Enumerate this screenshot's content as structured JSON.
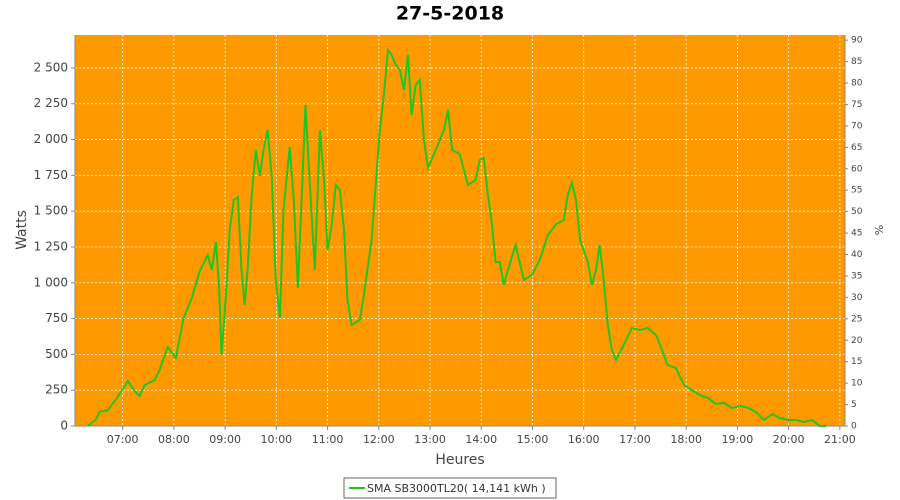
{
  "chart_data": {
    "type": "line",
    "title": "27-5-2018",
    "xlabel": "Heures",
    "ylabel": "Watts",
    "y2label": "%",
    "xlim": [
      6.07,
      21.1
    ],
    "ylim": [
      0,
      2730
    ],
    "y2lim": [
      0,
      91.2
    ],
    "xticks": [
      {
        "value": 7,
        "label": "07:00"
      },
      {
        "value": 8,
        "label": "08:00"
      },
      {
        "value": 9,
        "label": "09:00"
      },
      {
        "value": 10,
        "label": "10:00"
      },
      {
        "value": 11,
        "label": "11:00"
      },
      {
        "value": 12,
        "label": "12:00"
      },
      {
        "value": 13,
        "label": "13:00"
      },
      {
        "value": 14,
        "label": "14:00"
      },
      {
        "value": 15,
        "label": "15:00"
      },
      {
        "value": 16,
        "label": "16:00"
      },
      {
        "value": 17,
        "label": "17:00"
      },
      {
        "value": 18,
        "label": "18:00"
      },
      {
        "value": 19,
        "label": "19:00"
      },
      {
        "value": 20,
        "label": "20:00"
      },
      {
        "value": 21,
        "label": "21:00"
      }
    ],
    "yticks": [
      0,
      250,
      500,
      750,
      {
        "value": 1000,
        "label": "1 000"
      },
      {
        "value": 1250,
        "label": "1 250"
      },
      {
        "value": 1500,
        "label": "1 500"
      },
      {
        "value": 1750,
        "label": "1 750"
      },
      {
        "value": 2000,
        "label": "2 000"
      },
      {
        "value": 2250,
        "label": "2 250"
      },
      {
        "value": 2500,
        "label": "2 500"
      }
    ],
    "y2ticks": [
      0,
      5,
      10,
      15,
      20,
      25,
      30,
      35,
      40,
      45,
      50,
      55,
      60,
      65,
      70,
      75,
      80,
      85,
      90
    ],
    "grid": true,
    "background": "#ff9900",
    "legend": "bottom",
    "x": [
      6.32,
      6.47,
      6.55,
      6.71,
      6.86,
      7.02,
      7.1,
      7.25,
      7.33,
      7.43,
      7.63,
      7.72,
      7.88,
      8.04,
      8.19,
      8.35,
      8.5,
      8.66,
      8.74,
      8.82,
      8.88,
      8.93,
      9.01,
      9.09,
      9.17,
      9.25,
      9.32,
      9.38,
      9.44,
      9.52,
      9.6,
      9.68,
      9.75,
      9.83,
      9.91,
      9.99,
      10.07,
      10.14,
      10.26,
      10.34,
      10.42,
      10.5,
      10.57,
      10.65,
      10.75,
      10.85,
      10.93,
      11.0,
      11.08,
      11.16,
      11.24,
      11.32,
      11.39,
      11.47,
      11.63,
      11.71,
      11.86,
      12.02,
      12.1,
      12.18,
      12.25,
      12.33,
      12.41,
      12.49,
      12.57,
      12.64,
      12.72,
      12.8,
      12.88,
      12.96,
      13.11,
      13.27,
      13.35,
      13.43,
      13.58,
      13.74,
      13.89,
      13.97,
      14.05,
      14.13,
      14.2,
      14.28,
      14.36,
      14.44,
      14.52,
      14.67,
      14.83,
      14.99,
      15.14,
      15.3,
      15.46,
      15.61,
      15.69,
      15.77,
      15.85,
      15.93,
      16.08,
      16.16,
      16.24,
      16.31,
      16.39,
      16.47,
      16.55,
      16.63,
      16.78,
      16.94,
      17.1,
      17.25,
      17.41,
      17.49,
      17.64,
      17.8,
      17.96,
      18.11,
      18.27,
      18.42,
      18.58,
      18.74,
      18.89,
      19.05,
      19.21,
      19.36,
      19.52,
      19.68,
      19.83,
      19.99,
      20.15,
      20.3,
      20.46,
      20.61,
      20.73
    ],
    "series": [
      {
        "name": "SMA SB3000TL20( 14,141 kWh )",
        "color": "#22c422",
        "values": [
          0,
          42,
          98,
          112,
          182,
          265,
          314,
          237,
          210,
          286,
          321,
          391,
          552,
          475,
          754,
          894,
          1075,
          1194,
          1089,
          1285,
          985,
          496,
          880,
          1369,
          1578,
          1599,
          1089,
          845,
          1089,
          1613,
          1927,
          1746,
          1927,
          2067,
          1746,
          1020,
          754,
          1508,
          1948,
          1578,
          964,
          1648,
          2242,
          1718,
          1089,
          2067,
          1718,
          1229,
          1404,
          1683,
          1648,
          1369,
          880,
          705,
          740,
          915,
          1299,
          2067,
          2311,
          2626,
          2591,
          2521,
          2486,
          2346,
          2591,
          2172,
          2381,
          2416,
          1997,
          1802,
          1927,
          2067,
          2207,
          1927,
          1899,
          1683,
          1718,
          1858,
          1871,
          1613,
          1438,
          1145,
          1145,
          985,
          1089,
          1264,
          1020,
          1054,
          1159,
          1334,
          1408,
          1438,
          1613,
          1697,
          1578,
          1299,
          1145,
          985,
          1089,
          1264,
          1020,
          705,
          531,
          461,
          566,
          684,
          670,
          684,
          635,
          566,
          426,
          405,
          286,
          251,
          216,
          196,
          154,
          161,
          126,
          140,
          126,
          98,
          42,
          84,
          56,
          42,
          42,
          28,
          42,
          0,
          0
        ]
      }
    ]
  }
}
